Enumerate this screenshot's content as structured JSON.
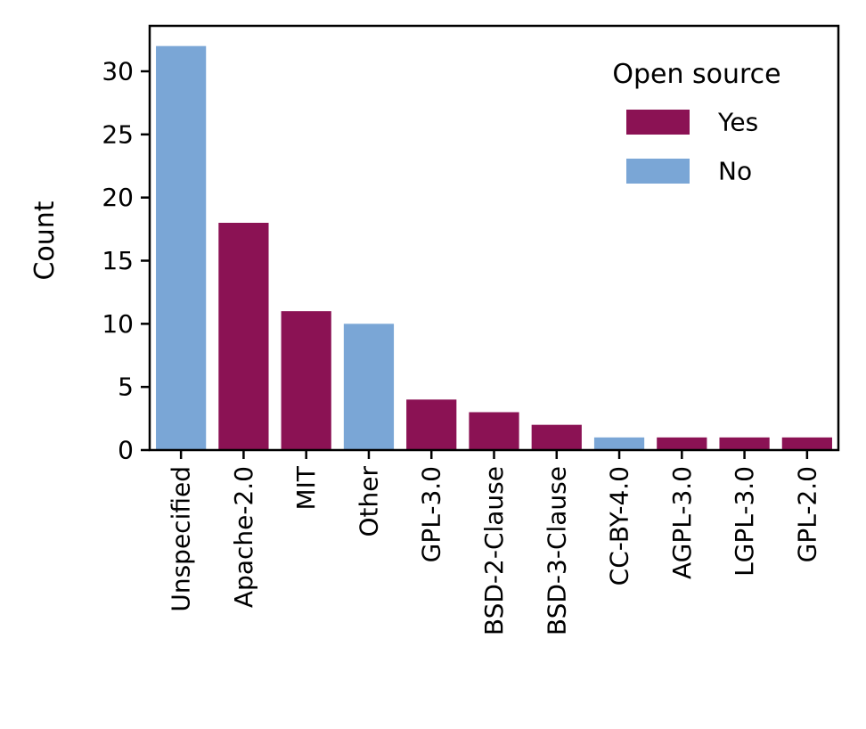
{
  "chart_data": {
    "type": "bar",
    "xlabel": "",
    "ylabel": "Count",
    "ylim": [
      0,
      33.6
    ],
    "yticks": [
      0,
      5,
      10,
      15,
      20,
      25,
      30
    ],
    "grid": false,
    "categories": [
      "Unspecified",
      "Apache-2.0",
      "MIT",
      "Other",
      "GPL-3.0",
      "BSD-2-Clause",
      "BSD-3-Clause",
      "CC-BY-4.0",
      "AGPL-3.0",
      "LGPL-3.0",
      "GPL-2.0"
    ],
    "values": [
      32,
      18,
      11,
      10,
      4,
      3,
      2,
      1,
      1,
      1,
      1
    ],
    "open_source": [
      "No",
      "Yes",
      "Yes",
      "No",
      "Yes",
      "Yes",
      "Yes",
      "No",
      "Yes",
      "Yes",
      "Yes"
    ],
    "legend": {
      "title": "Open source",
      "placement": "top-right",
      "entries": [
        {
          "label": "Yes",
          "color": "#8b1254"
        },
        {
          "label": "No",
          "color": "#7aa6d6"
        }
      ]
    }
  }
}
